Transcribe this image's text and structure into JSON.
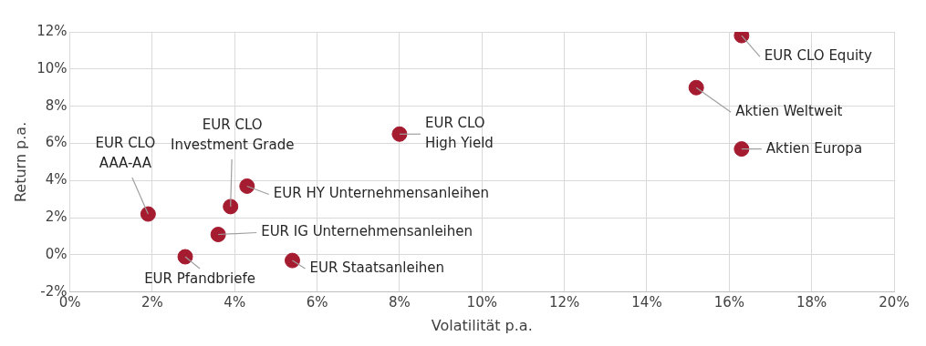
{
  "chart_data": {
    "type": "scatter",
    "xlabel": "Volatilität p.a.",
    "ylabel": "Return p.a.",
    "series": [
      {
        "color": "#a51c30",
        "x": [
          16.3,
          15.2,
          16.3,
          8.0,
          4.3,
          3.9,
          1.9,
          3.6,
          2.8,
          5.4
        ],
        "values": [
          11.8,
          9.0,
          5.7,
          6.5,
          3.7,
          2.6,
          2.2,
          1.1,
          -0.1,
          -0.3
        ]
      }
    ],
    "xlim": [
      0,
      20
    ],
    "xticks": [
      {
        "value": 0,
        "label": "0%"
      },
      {
        "value": 2,
        "label": "2%"
      },
      {
        "value": 4,
        "label": "4%"
      },
      {
        "value": 6,
        "label": "6%"
      },
      {
        "value": 8,
        "label": "8%"
      },
      {
        "value": 10,
        "label": "10%"
      },
      {
        "value": 12,
        "label": "12%"
      },
      {
        "value": 14,
        "label": "14%"
      },
      {
        "value": 16,
        "label": "16%"
      },
      {
        "value": 18,
        "label": "18%"
      },
      {
        "value": 20,
        "label": "20%"
      }
    ],
    "ylim": [
      -2,
      12
    ],
    "yticks": [
      {
        "value": -2,
        "label": "-2%"
      },
      {
        "value": 0,
        "label": "0%"
      },
      {
        "value": 2,
        "label": "2%"
      },
      {
        "value": 4,
        "label": "4%"
      },
      {
        "value": 6,
        "label": "6%"
      },
      {
        "value": 8,
        "label": "8%"
      },
      {
        "value": 10,
        "label": "10%"
      },
      {
        "value": 12,
        "label": "12%"
      }
    ],
    "grid": true,
    "legend": false,
    "marker": "circle",
    "annotations": [
      {
        "text": "EUR CLO Equity",
        "x": 16.3,
        "y": 11.8
      },
      {
        "text": "Aktien Weltweit",
        "x": 15.2,
        "y": 9.0
      },
      {
        "text": "Aktien Europa",
        "x": 16.3,
        "y": 5.7
      },
      {
        "text": "EUR CLO\nHigh Yield",
        "x": 8.0,
        "y": 6.5
      },
      {
        "text": "EUR HY Unternehmensanleihen",
        "x": 4.3,
        "y": 3.7
      },
      {
        "text": "EUR CLO\nInvestment Grade",
        "x": 3.9,
        "y": 2.6
      },
      {
        "text": "EUR CLO\nAAA-AA",
        "x": 1.9,
        "y": 2.2
      },
      {
        "text": "EUR IG Unternehmensanleihen",
        "x": 3.6,
        "y": 1.1
      },
      {
        "text": "EUR Pfandbriefe",
        "x": 2.8,
        "y": -0.1
      },
      {
        "text": "EUR Staatsanleihen",
        "x": 5.4,
        "y": -0.3
      }
    ]
  }
}
